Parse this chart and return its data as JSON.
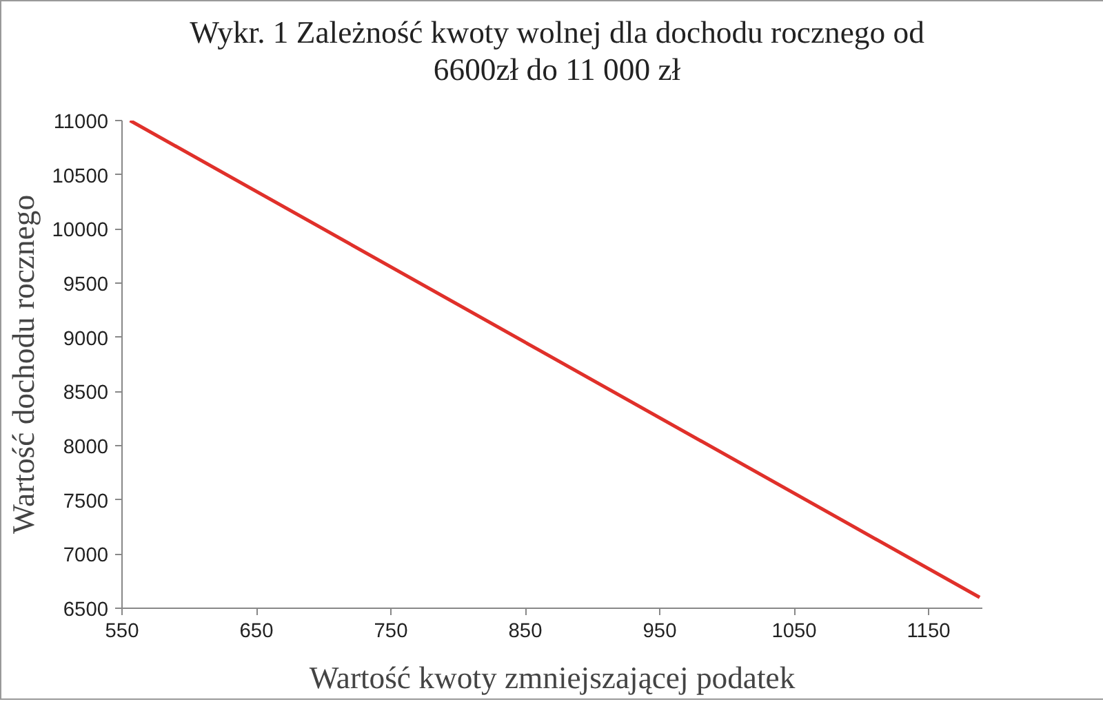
{
  "chart_data": {
    "type": "line",
    "title": "Wykr. 1 Zależność kwoty wolnej dla dochodu rocznego od\n6600zł do 11 000 zł",
    "xlabel": "Wartość kwoty zmniejszającej podatek",
    "ylabel": "Wartość dochodu rocznego",
    "x": [
      556,
      1188
    ],
    "series": [
      {
        "color": "#e0302a",
        "values": [
          11000,
          6600
        ]
      }
    ],
    "xlim": [
      550,
      1190
    ],
    "xticks": [
      550,
      650,
      750,
      850,
      950,
      1050,
      1150
    ],
    "ylim": [
      6500,
      11000
    ],
    "yticks": [
      6500,
      7000,
      7500,
      8000,
      8500,
      9000,
      9500,
      10000,
      10500,
      11000
    ],
    "grid": false
  }
}
